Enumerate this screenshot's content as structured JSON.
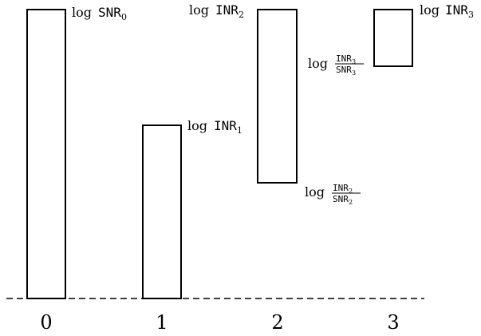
{
  "diagram": {
    "baseline_style": "dashed",
    "colors": {
      "stroke": "#000000",
      "background": "#ffffff"
    },
    "ticks": [
      "0",
      "1",
      "2",
      "3"
    ],
    "bars": [
      {
        "tick": "0",
        "bottom_label": null,
        "top_label": {
          "log": "log",
          "sym": "SNR",
          "sub": "0"
        }
      },
      {
        "tick": "1",
        "bottom_label": null,
        "top_label": {
          "log": "log",
          "sym": "INR",
          "sub": "1"
        }
      },
      {
        "tick": "2",
        "top_label": {
          "log": "log",
          "sym": "INR",
          "sub": "2"
        },
        "bottom_label": {
          "log": "log",
          "num": "INR",
          "num_sub": "2",
          "den": "SNR",
          "den_sub": "2"
        }
      },
      {
        "tick": "3",
        "top_label": {
          "log": "log",
          "sym": "INR",
          "sub": "3"
        },
        "bottom_label": {
          "log": "log",
          "num": "INR",
          "num_sub": "3",
          "den": "SNR",
          "den_sub": "3"
        }
      }
    ]
  }
}
